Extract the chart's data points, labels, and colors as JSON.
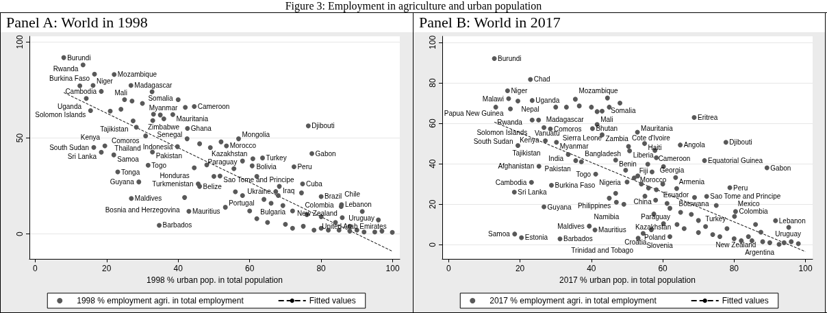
{
  "chart_data": [
    {
      "type": "scatter",
      "title": "Panel A: World in 1998",
      "annotations": [
        "Figure 3: Employment in agriculture and urban population"
      ],
      "xlabel": "1998 % urban pop. in total population",
      "xlim": [
        -1.6,
        102
      ],
      "xticks": [
        0,
        20,
        40,
        60,
        80,
        100
      ],
      "ylim": [
        -13,
        103
      ],
      "yticks": [
        0,
        50,
        100
      ],
      "grid": "y",
      "legend": "bottom",
      "series": [
        {
          "name": "1998 % employment agri. in total employment",
          "color": "#595959",
          "marker": "circle",
          "x": [
            8.0,
            13.4,
            16.6,
            22.1,
            12.5,
            16.2,
            26.8,
            32.7,
            18.5,
            14.3,
            27.1,
            44.5,
            15.5,
            33.1,
            38.5,
            32.9,
            27.4,
            28.3,
            42.6,
            30.9,
            19.5,
            16.4,
            18.5,
            22.0,
            32.8,
            31.6,
            44.5,
            23.1,
            29.0,
            45.6,
            46.0,
            26.9,
            41.8,
            43.0,
            34.7,
            39.8,
            42.5,
            76.4,
            77.4,
            72.4,
            74.8,
            74.5,
            80.0,
            85.7,
            85.6,
            91.5,
            85.9,
            96.0,
            63.6,
            60.7,
            55.6,
            53.5,
            56.9,
            60.9,
            51.7,
            68.3,
            67.3,
            69.3,
            53.2,
            99.9,
            60,
            62,
            65,
            70,
            72,
            75,
            78,
            80,
            82,
            85,
            88,
            90,
            92,
            95,
            97,
            64,
            58,
            56,
            66,
            50,
            48,
            52,
            49,
            46,
            36,
            35,
            25,
            30,
            21,
            24,
            40,
            42,
            58,
            62,
            68,
            72,
            76,
            80,
            84,
            88
          ],
          "values": [
            91.9,
            88.1,
            83.3,
            83.1,
            77.2,
            77.4,
            77.4,
            74.1,
            74.3,
            70.6,
            69.3,
            66.4,
            64.3,
            62.4,
            62.2,
            59.1,
            58.9,
            55.6,
            55.0,
            51.1,
            45.9,
            45.1,
            42.6,
            41.2,
            42.7,
            35.8,
            34.5,
            32.3,
            27.1,
            26.1,
            24.8,
            18.5,
            19.0,
            11.8,
            4.5,
            45.5,
            49.6,
            56.3,
            41.9,
            35.0,
            26.1,
            21.4,
            19.5,
            15.3,
            14.3,
            11.7,
            8.5,
            7.3,
            39.6,
            35.5,
            34.0,
            45.9,
            49.6,
            39.2,
            30.2,
            24.8,
            22.1,
            14.8,
            13.9,
            0.8,
            12,
            8,
            6,
            5,
            3,
            4,
            2,
            3,
            2,
            2,
            1.5,
            2,
            1,
            1,
            1.5,
            18,
            20,
            22,
            16,
            30,
            36,
            48,
            45,
            47,
            60,
            62,
            70,
            68,
            64,
            65,
            70,
            66,
            38,
            30,
            20,
            12,
            10,
            9,
            6,
            4
          ],
          "value_labels": [
            "Burundi",
            "Rwanda",
            "Burkina Faso",
            "Mozambique",
            null,
            "Niger",
            "Madagascar",
            "Somalia",
            "Cambodia",
            "Uganda",
            "Mali",
            "Cameroon",
            "Solomon Islands",
            "Myanmar",
            "Mauritania",
            "Zimbabwe",
            "Tajikistan",
            "Comoros",
            "Ghana",
            "Thailand",
            "Kenya",
            "South Sudan",
            "Sri Lanka",
            "Samoa",
            "Pakistan",
            "Togo",
            "Honduras",
            "Tonga",
            "Guyana",
            "Turkmenistan",
            "Belize",
            "Maldives",
            "Bosnia and Herzegovina",
            "Mauritius",
            "Barbados",
            "Indonesia",
            "Senegal",
            "Djibouti",
            "Gabon",
            "Peru",
            "Cuba",
            "Colombia",
            "Brazil",
            "Lebanon",
            "Chile",
            "Uruguay",
            "New Zealand",
            "United Arab Emirates",
            "Turkey",
            "Kazakhstan",
            "Paraguay",
            "Morocco",
            "Mongolia",
            "Bolivia",
            "Sao Tome and Principe",
            "Iraq",
            "Ukraine",
            "Bulgaria",
            "Portugal",
            null,
            null,
            null,
            null,
            null,
            null,
            null,
            null,
            null,
            null,
            null,
            null,
            null,
            null,
            null,
            null,
            null,
            null,
            null,
            null,
            null,
            null,
            null,
            null,
            null,
            null,
            null,
            null,
            null,
            null,
            null,
            null,
            null,
            null,
            null,
            null,
            null,
            null,
            null,
            null,
            null
          ]
        },
        {
          "name": "Fitted values",
          "type": "line",
          "color": "#000000",
          "marker": "none",
          "line_style": "dashed",
          "x": [
            8.0,
            99.9
          ],
          "values": [
            73.7,
            -9.0
          ]
        }
      ]
    },
    {
      "type": "scatter",
      "title": "Panel B: World in 2017",
      "xlabel": "2017 % urban pop. in total population",
      "xlim": [
        -1.8,
        102
      ],
      "xticks": [
        0,
        20,
        40,
        60,
        80,
        100
      ],
      "ylim": [
        -7,
        103
      ],
      "yticks": [
        0,
        20,
        40,
        60,
        80,
        100
      ],
      "grid": "y",
      "legend": "bottom",
      "series": [
        {
          "name": "2017 % employment agri. in total employment",
          "color": "#595959",
          "marker": "circle",
          "x": [
            12.8,
            22.9,
            16.5,
            16.8,
            19.4,
            23.4,
            13.2,
            17.3,
            35.5,
            44.5,
            36.6,
            41.6,
            23.4,
            25.2,
            41.6,
            26.7,
            28.5,
            40.3,
            43.0,
            27.1,
            30.2,
            19.4,
            33.5,
            35.6,
            37.2,
            46.8,
            25.3,
            41.2,
            23.2,
            28.8,
            18.4,
            26.7,
            39.4,
            41.0,
            18.5,
            20.4,
            31.2,
            46.8,
            49.1,
            49.6,
            50.4,
            50.7,
            68.8,
            52.9,
            54.9,
            64.9,
            77.7,
            57.8,
            58.2,
            71.7,
            89.2,
            55.8,
            60.2,
            63.6,
            63.9,
            58.2,
            78.8,
            72.3,
            68.9,
            61.2,
            80.4,
            75.0,
            57.5,
            60.2,
            80.1,
            91.6,
            95.3,
            87.5,
            56.8,
            54.5,
            53.1,
            92.6,
            52,
            54,
            50,
            56,
            55,
            58,
            62,
            65,
            68,
            70,
            66,
            70,
            74,
            76,
            80,
            82,
            85,
            88,
            90,
            94,
            96,
            98,
            62,
            64,
            72,
            78,
            84,
            86,
            45,
            47,
            53,
            57,
            60,
            48,
            40,
            33,
            30,
            45,
            43
          ],
          "values": [
            92.0,
            81.7,
            76.1,
            72.2,
            71.0,
            71.3,
            68.0,
            67.1,
            71.9,
            72.5,
            68.6,
            65.8,
            61.6,
            61.6,
            59.4,
            57.9,
            57.2,
            57.4,
            54.3,
            51.4,
            50.6,
            49.0,
            44.6,
            41.6,
            41.0,
            41.8,
            38.8,
            34.9,
            30.8,
            29.4,
            26.0,
            18.7,
            9.2,
            7.3,
            5.3,
            3.5,
            2.9,
            25.4,
            20.0,
            36.8,
            48.6,
            46.4,
            62.9,
            55.6,
            50.0,
            49.3,
            50.6,
            46.6,
            43.0,
            41.6,
            38.0,
            39.8,
            38.6,
            33.2,
            27.8,
            27.2,
            28.2,
            23.9,
            23.4,
            20.4,
            16.4,
            19.4,
            15.2,
            10.4,
            14.0,
            11.9,
            8.6,
            6.2,
            7.4,
            5.6,
            3.2,
            0.2,
            33,
            30,
            31,
            28,
            24,
            22,
            18,
            16,
            15,
            12,
            8,
            6,
            5,
            4,
            3,
            2,
            2,
            1.5,
            1,
            1,
            1.5,
            0.5,
            4,
            10,
            9,
            8,
            4,
            10,
            23,
            21,
            34,
            36,
            30,
            70,
            68,
            68,
            68,
            68,
            66
          ],
          "value_labels": [
            "Burundi",
            "Chad",
            "Niger",
            "Malawi",
            "Nepal",
            "Uganda",
            "Papua New Guinea",
            "Rwanda",
            "Mozambique",
            "Somalia",
            "Madagascar",
            "Mali",
            "Solomon Islands",
            "Vanuatu",
            "Sierra Leone",
            "Kenya",
            "Comoros",
            "Bhutan",
            "Zambia",
            "Tajikistan",
            "Myanmar",
            "South Sudan",
            "India",
            "Pakistan",
            "Bangladesh",
            "Benin",
            "Afghanistan",
            "Togo",
            "Cambodia",
            "Burkina Faso",
            "Sri Lanka",
            "Guyana",
            "Maldives",
            "Mauritius",
            "Samoa",
            "Estonia",
            "Barbados",
            "Philippines",
            "Namibia",
            "Nigeria",
            "Cote d'Ivoire",
            "Liberia",
            "Eritrea",
            "Mauritania",
            "Haiti",
            "Angola",
            "Djibouti",
            "Cameroon",
            "Georgia",
            "Equatorial Guinea",
            "Gabon",
            "Fiji",
            "Morocco",
            "Armenia",
            "Ecuador",
            "China",
            "Peru",
            "Sao Tome and Principe",
            "Botswana",
            "Paraguay",
            "Colombia",
            "Turkey",
            "Kazakhstan",
            "Poland",
            "Mexico",
            "Lebanon",
            "Uruguay",
            "New Zealand",
            "Croatia",
            "Slovenia",
            "Trinidad and Tobago",
            "Argentina",
            null,
            null,
            null,
            null,
            null,
            null,
            null,
            null,
            null,
            null,
            null,
            null,
            null,
            null,
            null,
            null,
            null,
            null,
            null,
            null,
            null,
            null,
            null,
            null,
            null,
            null,
            null,
            null,
            null,
            null,
            null,
            null,
            null,
            null,
            null,
            null,
            null,
            null,
            null
          ]
        },
        {
          "name": "Fitted values",
          "type": "line",
          "color": "#000000",
          "marker": "none",
          "line_style": "dashed",
          "x": [
            12.8,
            100
          ],
          "values": [
            60.6,
            -3.4
          ]
        }
      ]
    }
  ]
}
